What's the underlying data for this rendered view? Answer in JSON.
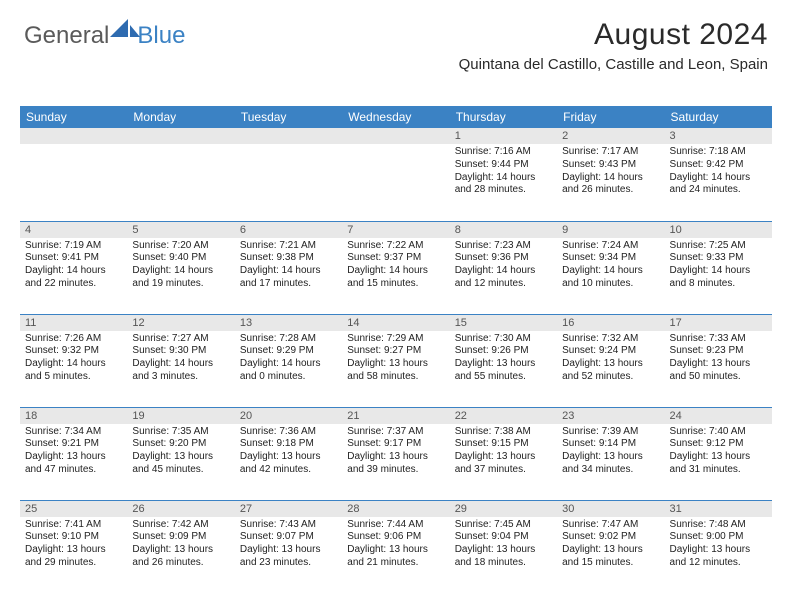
{
  "brand": {
    "part1": "General",
    "part2": "Blue",
    "accent_color": "#3b82c4",
    "text_color": "#5a5a5a"
  },
  "header": {
    "month_title": "August 2024",
    "location": "Quintana del Castillo, Castille and Leon, Spain"
  },
  "styling": {
    "header_bg": "#3b82c4",
    "header_text": "#ffffff",
    "daynum_bg": "#e8e8e8",
    "daynum_text": "#555555",
    "body_text": "#222222",
    "week_divider": "#3b82c4",
    "page_bg": "#ffffff",
    "th_fontsize": 12,
    "body_fontsize": 10,
    "title_fontsize": 30,
    "location_fontsize": 15
  },
  "day_headers": [
    "Sunday",
    "Monday",
    "Tuesday",
    "Wednesday",
    "Thursday",
    "Friday",
    "Saturday"
  ],
  "weeks": [
    [
      {
        "n": "",
        "text": ""
      },
      {
        "n": "",
        "text": ""
      },
      {
        "n": "",
        "text": ""
      },
      {
        "n": "",
        "text": ""
      },
      {
        "n": "1",
        "sr": "7:16 AM",
        "ss": "9:44 PM",
        "dl": "14 hours and 28 minutes."
      },
      {
        "n": "2",
        "sr": "7:17 AM",
        "ss": "9:43 PM",
        "dl": "14 hours and 26 minutes."
      },
      {
        "n": "3",
        "sr": "7:18 AM",
        "ss": "9:42 PM",
        "dl": "14 hours and 24 minutes."
      }
    ],
    [
      {
        "n": "4",
        "sr": "7:19 AM",
        "ss": "9:41 PM",
        "dl": "14 hours and 22 minutes."
      },
      {
        "n": "5",
        "sr": "7:20 AM",
        "ss": "9:40 PM",
        "dl": "14 hours and 19 minutes."
      },
      {
        "n": "6",
        "sr": "7:21 AM",
        "ss": "9:38 PM",
        "dl": "14 hours and 17 minutes."
      },
      {
        "n": "7",
        "sr": "7:22 AM",
        "ss": "9:37 PM",
        "dl": "14 hours and 15 minutes."
      },
      {
        "n": "8",
        "sr": "7:23 AM",
        "ss": "9:36 PM",
        "dl": "14 hours and 12 minutes."
      },
      {
        "n": "9",
        "sr": "7:24 AM",
        "ss": "9:34 PM",
        "dl": "14 hours and 10 minutes."
      },
      {
        "n": "10",
        "sr": "7:25 AM",
        "ss": "9:33 PM",
        "dl": "14 hours and 8 minutes."
      }
    ],
    [
      {
        "n": "11",
        "sr": "7:26 AM",
        "ss": "9:32 PM",
        "dl": "14 hours and 5 minutes."
      },
      {
        "n": "12",
        "sr": "7:27 AM",
        "ss": "9:30 PM",
        "dl": "14 hours and 3 minutes."
      },
      {
        "n": "13",
        "sr": "7:28 AM",
        "ss": "9:29 PM",
        "dl": "14 hours and 0 minutes."
      },
      {
        "n": "14",
        "sr": "7:29 AM",
        "ss": "9:27 PM",
        "dl": "13 hours and 58 minutes."
      },
      {
        "n": "15",
        "sr": "7:30 AM",
        "ss": "9:26 PM",
        "dl": "13 hours and 55 minutes."
      },
      {
        "n": "16",
        "sr": "7:32 AM",
        "ss": "9:24 PM",
        "dl": "13 hours and 52 minutes."
      },
      {
        "n": "17",
        "sr": "7:33 AM",
        "ss": "9:23 PM",
        "dl": "13 hours and 50 minutes."
      }
    ],
    [
      {
        "n": "18",
        "sr": "7:34 AM",
        "ss": "9:21 PM",
        "dl": "13 hours and 47 minutes."
      },
      {
        "n": "19",
        "sr": "7:35 AM",
        "ss": "9:20 PM",
        "dl": "13 hours and 45 minutes."
      },
      {
        "n": "20",
        "sr": "7:36 AM",
        "ss": "9:18 PM",
        "dl": "13 hours and 42 minutes."
      },
      {
        "n": "21",
        "sr": "7:37 AM",
        "ss": "9:17 PM",
        "dl": "13 hours and 39 minutes."
      },
      {
        "n": "22",
        "sr": "7:38 AM",
        "ss": "9:15 PM",
        "dl": "13 hours and 37 minutes."
      },
      {
        "n": "23",
        "sr": "7:39 AM",
        "ss": "9:14 PM",
        "dl": "13 hours and 34 minutes."
      },
      {
        "n": "24",
        "sr": "7:40 AM",
        "ss": "9:12 PM",
        "dl": "13 hours and 31 minutes."
      }
    ],
    [
      {
        "n": "25",
        "sr": "7:41 AM",
        "ss": "9:10 PM",
        "dl": "13 hours and 29 minutes."
      },
      {
        "n": "26",
        "sr": "7:42 AM",
        "ss": "9:09 PM",
        "dl": "13 hours and 26 minutes."
      },
      {
        "n": "27",
        "sr": "7:43 AM",
        "ss": "9:07 PM",
        "dl": "13 hours and 23 minutes."
      },
      {
        "n": "28",
        "sr": "7:44 AM",
        "ss": "9:06 PM",
        "dl": "13 hours and 21 minutes."
      },
      {
        "n": "29",
        "sr": "7:45 AM",
        "ss": "9:04 PM",
        "dl": "13 hours and 18 minutes."
      },
      {
        "n": "30",
        "sr": "7:47 AM",
        "ss": "9:02 PM",
        "dl": "13 hours and 15 minutes."
      },
      {
        "n": "31",
        "sr": "7:48 AM",
        "ss": "9:00 PM",
        "dl": "13 hours and 12 minutes."
      }
    ]
  ],
  "labels": {
    "sunrise": "Sunrise:",
    "sunset": "Sunset:",
    "daylight": "Daylight:"
  }
}
